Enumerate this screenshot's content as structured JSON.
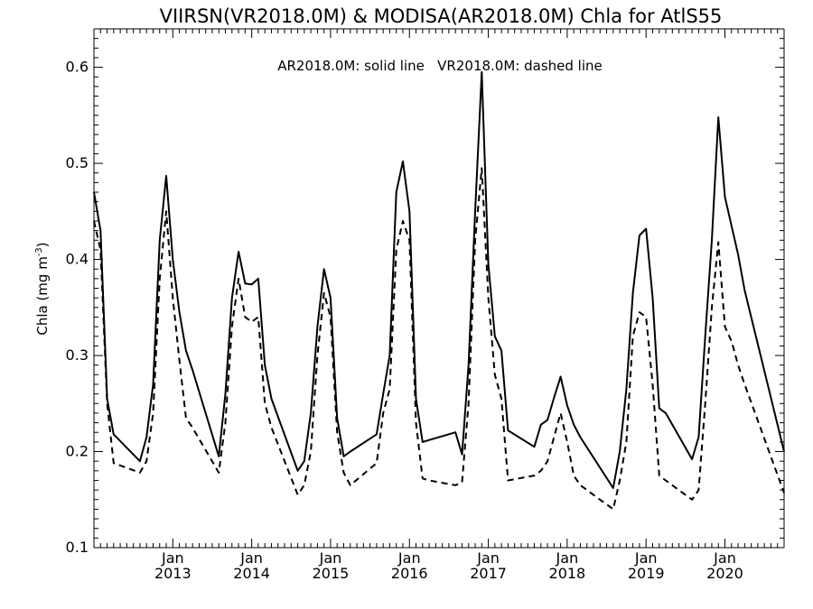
{
  "chart_data": {
    "type": "line",
    "title": "VIIRSN(VR2018.0M) & MODISA(AR2018.0M)  Chla for AtlS55",
    "xlabel": "",
    "ylabel_main": "Chla (mg m",
    "ylabel_sup": "-3",
    "ylabel_close": ")",
    "ylim": [
      0.1,
      0.64
    ],
    "yticks": [
      "0.1",
      "0.2",
      "0.3",
      "0.4",
      "0.5",
      "0.6"
    ],
    "xlim": [
      "2012-01-15",
      "2020-10-15"
    ],
    "xtick_months": [
      "Jan",
      "Jan",
      "Jan",
      "Jan",
      "Jan",
      "Jan",
      "Jan",
      "Jan"
    ],
    "xtick_years": [
      "2013",
      "2014",
      "2015",
      "2016",
      "2017",
      "2018",
      "2019",
      "2020"
    ],
    "legend_text": "AR2018.0M: solid line   VR2018.0M: dashed line",
    "grid": false,
    "series": [
      {
        "name": "AR2018.0M",
        "style": "solid",
        "x": [
          "2012-01-15",
          "2012-02-15",
          "2012-03-15",
          "2012-04-15",
          "2012-08-15",
          "2012-09-15",
          "2012-10-15",
          "2012-11-15",
          "2012-12-15",
          "2013-01-15",
          "2013-02-15",
          "2013-03-15",
          "2013-04-15",
          "2013-08-15",
          "2013-09-15",
          "2013-10-15",
          "2013-11-15",
          "2013-12-15",
          "2014-01-15",
          "2014-02-15",
          "2014-03-15",
          "2014-04-15",
          "2014-08-15",
          "2014-09-15",
          "2014-10-15",
          "2014-11-15",
          "2014-12-15",
          "2015-01-15",
          "2015-02-15",
          "2015-03-15",
          "2015-04-15",
          "2015-08-15",
          "2015-09-15",
          "2015-10-15",
          "2015-11-15",
          "2015-12-15",
          "2016-01-15",
          "2016-02-15",
          "2016-03-15",
          "2016-04-15",
          "2016-08-15",
          "2016-09-15",
          "2016-10-15",
          "2016-11-15",
          "2016-12-15",
          "2017-01-15",
          "2017-02-15",
          "2017-03-15",
          "2017-04-15",
          "2017-08-15",
          "2017-09-15",
          "2017-10-15",
          "2017-11-15",
          "2017-12-15",
          "2018-01-15",
          "2018-02-15",
          "2018-03-15",
          "2018-08-15",
          "2018-09-15",
          "2018-10-15",
          "2018-11-15",
          "2018-12-15",
          "2019-01-15",
          "2019-02-15",
          "2019-03-15",
          "2019-04-15",
          "2019-08-15",
          "2019-09-15",
          "2019-10-15",
          "2019-11-15",
          "2019-12-15",
          "2020-01-15",
          "2020-02-15",
          "2020-03-15",
          "2020-04-15",
          "2020-10-15"
        ],
        "y": [
          0.47,
          0.43,
          0.255,
          0.218,
          0.19,
          0.215,
          0.27,
          0.42,
          0.487,
          0.4,
          0.345,
          0.305,
          0.285,
          0.195,
          0.26,
          0.36,
          0.408,
          0.375,
          0.374,
          0.38,
          0.29,
          0.255,
          0.18,
          0.19,
          0.24,
          0.33,
          0.39,
          0.36,
          0.235,
          0.195,
          0.2,
          0.218,
          0.26,
          0.3,
          0.47,
          0.502,
          0.45,
          0.255,
          0.21,
          0.212,
          0.22,
          0.197,
          0.29,
          0.45,
          0.595,
          0.395,
          0.32,
          0.305,
          0.222,
          0.205,
          0.228,
          0.233,
          0.256,
          0.278,
          0.248,
          0.228,
          0.215,
          0.162,
          0.2,
          0.265,
          0.365,
          0.425,
          0.432,
          0.36,
          0.245,
          0.24,
          0.192,
          0.215,
          0.32,
          0.42,
          0.548,
          0.465,
          0.435,
          0.405,
          0.368,
          0.2
        ]
      },
      {
        "name": "VR2018.0M",
        "style": "dashed",
        "x": [
          "2012-01-15",
          "2012-02-15",
          "2012-03-15",
          "2012-04-15",
          "2012-08-15",
          "2012-09-15",
          "2012-10-15",
          "2012-11-15",
          "2012-12-15",
          "2013-01-15",
          "2013-02-15",
          "2013-03-15",
          "2013-04-15",
          "2013-08-15",
          "2013-09-15",
          "2013-10-15",
          "2013-11-15",
          "2013-12-15",
          "2014-01-15",
          "2014-02-15",
          "2014-03-15",
          "2014-04-15",
          "2014-08-15",
          "2014-09-15",
          "2014-10-15",
          "2014-11-15",
          "2014-12-15",
          "2015-01-15",
          "2015-02-15",
          "2015-03-15",
          "2015-04-15",
          "2015-08-15",
          "2015-09-15",
          "2015-10-15",
          "2015-11-15",
          "2015-12-15",
          "2016-01-15",
          "2016-02-15",
          "2016-03-15",
          "2016-04-15",
          "2016-08-15",
          "2016-09-15",
          "2016-10-15",
          "2016-11-15",
          "2016-12-15",
          "2017-01-15",
          "2017-02-15",
          "2017-03-15",
          "2017-04-15",
          "2017-08-15",
          "2017-09-15",
          "2017-10-15",
          "2017-11-15",
          "2017-12-15",
          "2018-01-15",
          "2018-02-15",
          "2018-03-15",
          "2018-08-15",
          "2018-09-15",
          "2018-10-15",
          "2018-11-15",
          "2018-12-15",
          "2019-01-15",
          "2019-02-15",
          "2019-03-15",
          "2019-04-15",
          "2019-08-15",
          "2019-09-15",
          "2019-10-15",
          "2019-11-15",
          "2019-12-15",
          "2020-01-15",
          "2020-02-15",
          "2020-03-15",
          "2020-04-15",
          "2020-10-15"
        ],
        "y": [
          0.44,
          0.41,
          0.25,
          0.188,
          0.178,
          0.19,
          0.24,
          0.38,
          0.45,
          0.36,
          0.295,
          0.235,
          0.225,
          0.178,
          0.23,
          0.33,
          0.38,
          0.34,
          0.335,
          0.34,
          0.25,
          0.225,
          0.155,
          0.165,
          0.2,
          0.3,
          0.365,
          0.34,
          0.22,
          0.178,
          0.165,
          0.188,
          0.24,
          0.265,
          0.41,
          0.44,
          0.42,
          0.23,
          0.172,
          0.17,
          0.165,
          0.168,
          0.25,
          0.42,
          0.495,
          0.36,
          0.28,
          0.255,
          0.17,
          0.175,
          0.18,
          0.19,
          0.215,
          0.24,
          0.21,
          0.175,
          0.165,
          0.14,
          0.17,
          0.21,
          0.32,
          0.345,
          0.34,
          0.27,
          0.175,
          0.17,
          0.15,
          0.16,
          0.25,
          0.35,
          0.418,
          0.33,
          0.315,
          0.29,
          0.27,
          0.157
        ]
      }
    ]
  }
}
